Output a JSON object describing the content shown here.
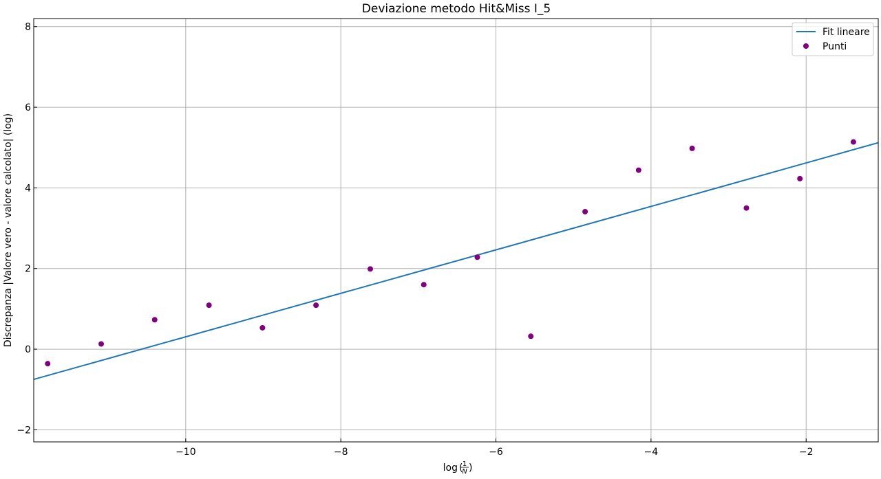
{
  "chart_data": {
    "type": "scatter",
    "title": "Deviazione metodo Hit&Miss I_5",
    "xlabel_prefix": "log",
    "xlabel_numerator": "1",
    "xlabel_denominator": "N",
    "ylabel": "Discrepanza |Valore vero - valore calcolato| (log)",
    "xlim": [
      -11.96,
      -1.07
    ],
    "ylim": [
      -2.3,
      8.2
    ],
    "x_ticks": [
      -10,
      -8,
      -6,
      -4,
      -2
    ],
    "y_ticks": [
      -2,
      0,
      2,
      4,
      6,
      8
    ],
    "x_tick_labels": [
      "−10",
      "−8",
      "−6",
      "−4",
      "−2"
    ],
    "y_tick_labels": [
      "−2",
      "0",
      "2",
      "4",
      "6",
      "8"
    ],
    "grid": true,
    "legend_position": "top-right",
    "series": [
      {
        "name": "Fit lineare",
        "kind": "line",
        "color": "#1f77b4",
        "x": [
          -11.96,
          -1.07
        ],
        "y": [
          -0.75,
          5.12
        ]
      },
      {
        "name": "Punti",
        "kind": "scatter",
        "color": "#800080",
        "x": [
          -11.78,
          -11.09,
          -10.4,
          -9.7,
          -9.01,
          -8.32,
          -7.62,
          -6.93,
          -6.24,
          -5.55,
          -4.85,
          -4.16,
          -3.47,
          -2.77,
          -2.08,
          -1.39
        ],
        "y": [
          -0.36,
          0.13,
          0.73,
          1.09,
          0.53,
          1.09,
          1.99,
          1.6,
          2.28,
          0.32,
          3.41,
          4.44,
          4.98,
          3.5,
          4.23,
          5.14
        ]
      }
    ]
  }
}
